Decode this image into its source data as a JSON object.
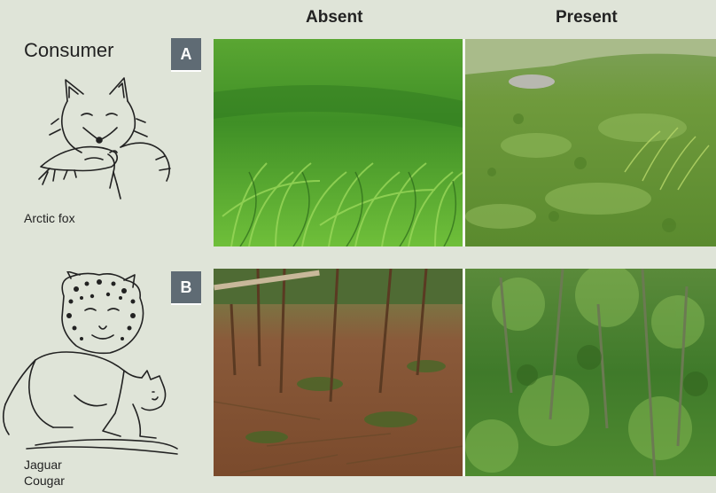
{
  "headers": {
    "absent": "Absent",
    "present": "Present"
  },
  "side_title": "Consumer",
  "rows": [
    {
      "badge": "A",
      "consumers": [
        "Arctic fox"
      ],
      "icon": "arctic-fox-icon"
    },
    {
      "badge": "B",
      "consumers": [
        "Jaguar",
        "Cougar"
      ],
      "icon": "jaguar-cougar-icon"
    }
  ],
  "colors": {
    "background": "#dfe4d8",
    "badge": "#5f6b74",
    "grass_light": "#6fbf3a",
    "grass_dark": "#2f7a20",
    "moss": "#7fa44a",
    "soil": "#8a5a3a",
    "forest_green": "#3f7a2a"
  }
}
